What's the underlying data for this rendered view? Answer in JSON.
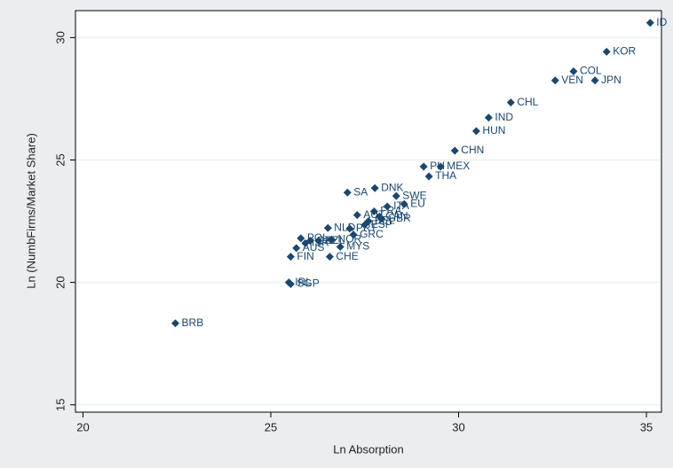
{
  "chart_data": {
    "type": "scatter",
    "x_label": "Ln Absorption",
    "y_label": "Ln (NumbFirms/Market Share)",
    "xlim": [
      19.8,
      35.4
    ],
    "ylim": [
      14.7,
      31.1
    ],
    "xticks": [
      20,
      25,
      30,
      35
    ],
    "yticks": [
      15,
      20,
      25,
      30
    ],
    "grid": true,
    "color": "#1a476f",
    "x": [
      35.1,
      33.94,
      33.06,
      32.57,
      33.63,
      31.39,
      30.8,
      30.47,
      29.9,
      29.07,
      29.52,
      29.21,
      27.04,
      27.77,
      28.34,
      28.55,
      27.89,
      26.52,
      26.85,
      26.57,
      25.53,
      25.48,
      25.53,
      22.46,
      27.3,
      27.6,
      27.75,
      28.1,
      27.95,
      27.5,
      27.1,
      27.2,
      26.62,
      26.27,
      25.92,
      25.68,
      25.8,
      26.05
    ],
    "values": [
      30.6,
      29.42,
      28.62,
      28.25,
      28.25,
      27.35,
      26.73,
      26.18,
      25.38,
      24.73,
      24.73,
      24.33,
      23.67,
      23.85,
      23.53,
      23.2,
      22.69,
      22.22,
      21.45,
      21.05,
      21.05,
      20.0,
      19.93,
      18.33,
      22.75,
      22.5,
      22.9,
      23.1,
      22.6,
      22.35,
      22.2,
      21.95,
      21.75,
      21.7,
      21.6,
      21.4,
      21.8,
      21.7
    ],
    "point_labels": [
      "ID",
      "KOR",
      "COL",
      "VEN",
      "JPN",
      "CHL",
      "IND",
      "HUN",
      "CHN",
      "PH",
      "MEX",
      "THA",
      "SA",
      "DNK",
      "SWE",
      "EU",
      "CAN",
      "NLD",
      "MYS",
      "CHE",
      "FIN",
      "IRL",
      "SGP",
      "BRB",
      "AUT",
      "BEL",
      "FRA",
      "ITA",
      "GBR",
      "ESP",
      "PRT",
      "GRC",
      "NOR",
      "NZL",
      "ISR",
      "AUS",
      "POL",
      "CZE"
    ]
  }
}
